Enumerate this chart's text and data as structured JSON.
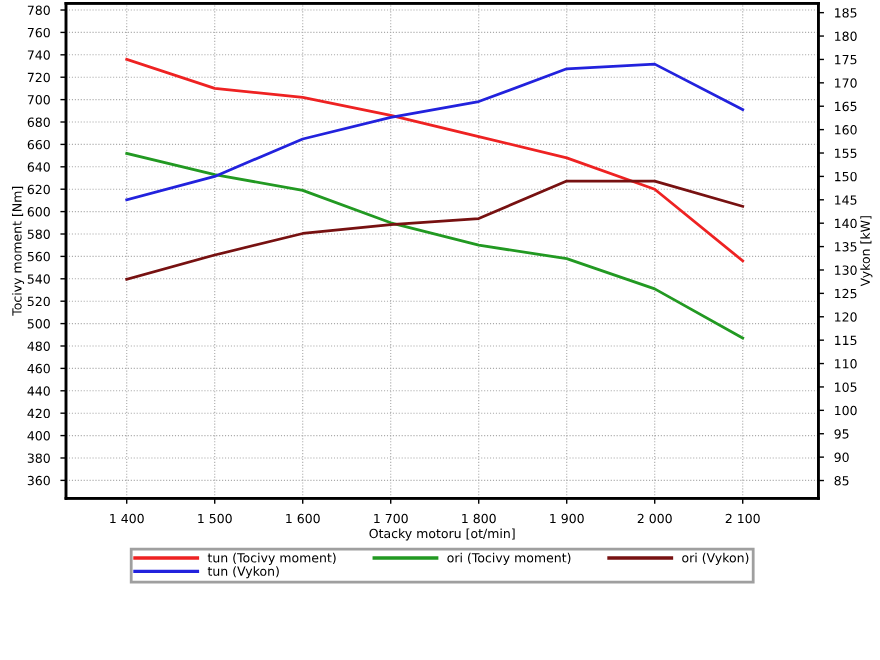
{
  "chart_data": {
    "type": "line",
    "xlabel": "Otacky motoru [ot/min]",
    "ylabel": "Tocivy moment [Nm]",
    "y2label": "Vykon [kW]",
    "x": [
      1400,
      1500,
      1600,
      1700,
      1800,
      1900,
      2000,
      2100
    ],
    "xlim": [
      1331,
      2186
    ],
    "xticks": [
      {
        "value": 1400,
        "label": "1 400"
      },
      {
        "value": 1500,
        "label": "1 500"
      },
      {
        "value": 1600,
        "label": "1 600"
      },
      {
        "value": 1700,
        "label": "1 700"
      },
      {
        "value": 1800,
        "label": "1 800"
      },
      {
        "value": 1900,
        "label": "1 900"
      },
      {
        "value": 2000,
        "label": "2 000"
      },
      {
        "value": 2100,
        "label": "2 100"
      }
    ],
    "ylim": [
      344,
      786
    ],
    "yticks": [
      360,
      380,
      400,
      420,
      440,
      460,
      480,
      500,
      520,
      540,
      560,
      580,
      600,
      620,
      640,
      660,
      680,
      700,
      720,
      740,
      760,
      780
    ],
    "y2lim": [
      81.2,
      187
    ],
    "y2ticks": [
      85,
      90,
      95,
      100,
      105,
      110,
      115,
      120,
      125,
      130,
      135,
      140,
      145,
      150,
      155,
      160,
      165,
      170,
      175,
      180,
      185
    ],
    "grid": true,
    "legend": "bottom",
    "marker": "none",
    "line_style": "solid",
    "series": [
      {
        "name": "tun (Tocivy moment)",
        "color": "#ee2222",
        "values": [
          736,
          710,
          702,
          686,
          667,
          648,
          620,
          556
        ]
      },
      {
        "name": "tun (Vykon)",
        "color": "#2222dd",
        "axis": "y2",
        "values": [
          145,
          150,
          158,
          162.6,
          166,
          173,
          174,
          164.3
        ]
      },
      {
        "name": "ori (Tocivy moment)",
        "color": "#229922",
        "values": [
          652,
          633,
          619,
          590,
          570,
          558,
          531,
          487
        ]
      },
      {
        "name": "ori (Vykon)",
        "color": "#771111",
        "axis": "y2",
        "values": [
          128,
          133.2,
          137.8,
          139.7,
          141,
          149,
          149,
          143.6
        ]
      }
    ]
  }
}
